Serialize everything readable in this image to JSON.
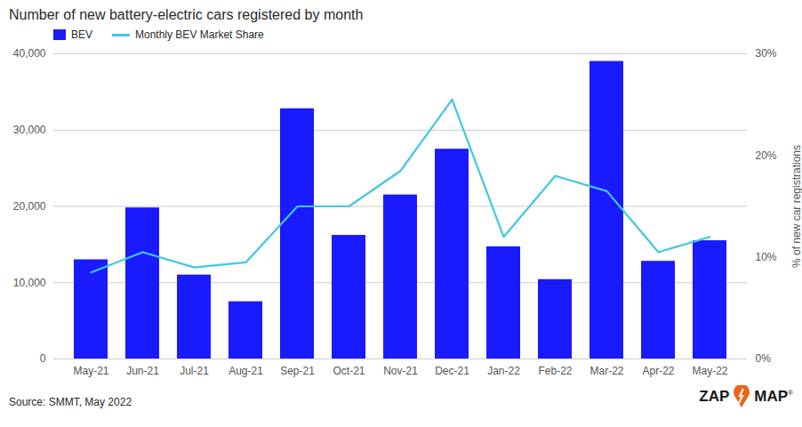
{
  "chart_data": {
    "type": "bar",
    "title": "Number of new battery-electric cars registered by month",
    "categories": [
      "May-21",
      "Jun-21",
      "Jul-21",
      "Aug-21",
      "Sep-21",
      "Oct-21",
      "Nov-21",
      "Dec-21",
      "Jan-22",
      "Feb-22",
      "Mar-22",
      "Apr-22",
      "May-22"
    ],
    "series": [
      {
        "name": "BEV",
        "type": "bar",
        "color": "#1a1aff",
        "values": [
          13000,
          19800,
          11000,
          7500,
          32800,
          16200,
          21500,
          27500,
          14700,
          10400,
          39000,
          12800,
          15500
        ]
      },
      {
        "name": "Monthly BEV Market Share",
        "type": "line",
        "color": "#40c8e0",
        "axis": "y2",
        "values": [
          0.085,
          0.105,
          0.09,
          0.095,
          0.15,
          0.15,
          0.185,
          0.255,
          0.12,
          0.18,
          0.165,
          0.105,
          0.12
        ]
      }
    ],
    "ylim": [
      0,
      40000
    ],
    "yticks": [
      0,
      {
        "value": 10000,
        "label": "10,000"
      },
      {
        "value": 20000,
        "label": "20,000"
      },
      {
        "value": 30000,
        "label": "30,000"
      },
      {
        "value": 40000,
        "label": "40,000"
      }
    ],
    "y2lim": [
      0,
      0.3
    ],
    "y2ticks": [
      {
        "value": 0,
        "label": "0%"
      },
      {
        "value": 0.1,
        "label": "10%"
      },
      {
        "value": 0.2,
        "label": "20%"
      },
      {
        "value": 0.3,
        "label": "30%"
      }
    ],
    "y2label": "% of new car registrations",
    "grid": true,
    "legend": "upper left",
    "annotations": [
      "Source: SMMT, May 2022",
      "ZAP",
      "MAP",
      "®"
    ]
  }
}
